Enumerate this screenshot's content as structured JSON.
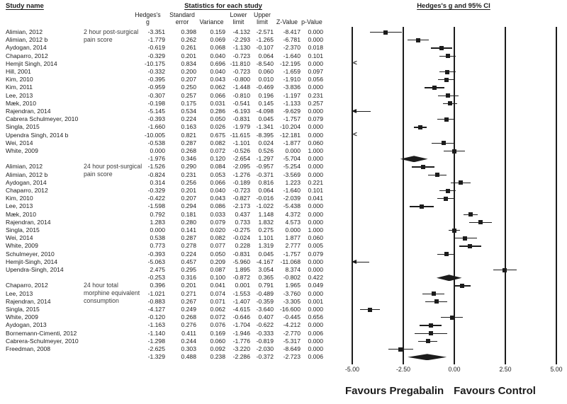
{
  "title": {
    "study_name_header": "Study name",
    "stats_header": "Statistics for each study",
    "ci_header": "Hedges's g and 95% CI"
  },
  "columns": {
    "line1": [
      "Hedges's",
      "Standard",
      "",
      "Lower",
      "Upper",
      "",
      ""
    ],
    "line2": [
      "g",
      "error",
      "Variance",
      "limit",
      "limit",
      "Z-Value",
      "p-Value"
    ]
  },
  "axis": {
    "min": -5,
    "max": 5,
    "ticks": [
      "-5.00",
      "-2.50",
      "0.00",
      "2.50",
      "5.00"
    ],
    "favours_left": "Favours Pregabalin",
    "favours_right": "Favours Control"
  },
  "chart_data": {
    "type": "forest",
    "effect_measure": "Hedges's g",
    "stat_columns": [
      "Hedges's g",
      "Standard error",
      "Variance",
      "Lower limit",
      "Upper limit",
      "Z-Value",
      "p-Value"
    ],
    "xlim": [
      -5,
      5
    ],
    "groups": [
      {
        "label": "2 hour post-surgical pain score",
        "label_lines": [
          "2 hour post-surgical",
          "pain score"
        ],
        "studies": [
          {
            "name": "Alimian, 2012",
            "stats": [
              "-3.351",
              "0.398",
              "0.159",
              "-4.132",
              "-2.571",
              "-8.417",
              "0.000"
            ]
          },
          {
            "name": "Alimian, 2012 b",
            "stats": [
              "-1.779",
              "0.262",
              "0.069",
              "-2.293",
              "-1.265",
              "-6.781",
              "0.000"
            ]
          },
          {
            "name": "Aydogan, 2014",
            "stats": [
              "-0.619",
              "0.261",
              "0.068",
              "-1.130",
              "-0.107",
              "-2.370",
              "0.018"
            ]
          },
          {
            "name": "Chaparro, 2012",
            "stats": [
              "-0.329",
              "0.201",
              "0.040",
              "-0.723",
              "0.064",
              "-1.640",
              "0.101"
            ]
          },
          {
            "name": "Hemjit Singh, 2014",
            "stats": [
              "-10.175",
              "0.834",
              "0.696",
              "-11.810",
              "-8.540",
              "-12.195",
              "0.000"
            ]
          },
          {
            "name": "Hill, 2001",
            "stats": [
              "-0.332",
              "0.200",
              "0.040",
              "-0.723",
              "0.060",
              "-1.659",
              "0.097"
            ]
          },
          {
            "name": "Kim, 2010",
            "stats": [
              "-0.395",
              "0.207",
              "0.043",
              "-0.800",
              "0.010",
              "-1.910",
              "0.056"
            ]
          },
          {
            "name": "Kim, 2011",
            "stats": [
              "-0.959",
              "0.250",
              "0.062",
              "-1.448",
              "-0.469",
              "-3.836",
              "0.000"
            ]
          },
          {
            "name": "Lee, 2013",
            "stats": [
              "-0.307",
              "0.257",
              "0.066",
              "-0.810",
              "0.196",
              "-1.197",
              "0.231"
            ]
          },
          {
            "name": "Mæk, 2010",
            "stats": [
              "-0.198",
              "0.175",
              "0.031",
              "-0.541",
              "0.145",
              "-1.133",
              "0.257"
            ]
          },
          {
            "name": "Rajendran, 2014",
            "stats": [
              "-5.145",
              "0.534",
              "0.286",
              "-6.193",
              "-4.098",
              "-9.629",
              "0.000"
            ]
          },
          {
            "name": "Cabrera Schulmeyer, 2010",
            "stats": [
              "-0.393",
              "0.224",
              "0.050",
              "-0.831",
              "0.045",
              "-1.757",
              "0.079"
            ]
          },
          {
            "name": "Singla, 2015",
            "stats": [
              "-1.660",
              "0.163",
              "0.026",
              "-1.979",
              "-1.341",
              "-10.204",
              "0.000"
            ]
          },
          {
            "name": "Upendra Singh, 2014 b",
            "stats": [
              "-10.005",
              "0.821",
              "0.675",
              "-11.615",
              "-8.395",
              "-12.181",
              "0.000"
            ]
          },
          {
            "name": "Wei, 2014",
            "stats": [
              "-0.538",
              "0.287",
              "0.082",
              "-1.101",
              "0.024",
              "-1.877",
              "0.060"
            ]
          },
          {
            "name": "White, 2009",
            "stats": [
              "0.000",
              "0.268",
              "0.072",
              "-0.526",
              "0.526",
              "0.000",
              "1.000"
            ]
          }
        ],
        "summary": {
          "stats": [
            "-1.976",
            "0.346",
            "0.120",
            "-2.654",
            "-1.297",
            "-5.704",
            "0.000"
          ]
        }
      },
      {
        "label": "24 hour post-surgical pain score",
        "label_lines": [
          "24 hour post-surgical",
          "pain score"
        ],
        "studies": [
          {
            "name": "Alimian, 2012",
            "stats": [
              "-1.526",
              "0.290",
              "0.084",
              "-2.095",
              "-0.957",
              "-5.254",
              "0.000"
            ]
          },
          {
            "name": "Alimian, 2012 b",
            "stats": [
              "-0.824",
              "0.231",
              "0.053",
              "-1.276",
              "-0.371",
              "-3.569",
              "0.000"
            ]
          },
          {
            "name": "Aydogan, 2014",
            "stats": [
              "0.314",
              "0.256",
              "0.066",
              "-0.189",
              "0.816",
              "1.223",
              "0.221"
            ]
          },
          {
            "name": "Chaparro, 2012",
            "stats": [
              "-0.329",
              "0.201",
              "0.040",
              "-0.723",
              "0.064",
              "-1.640",
              "0.101"
            ]
          },
          {
            "name": "Kim, 2010",
            "stats": [
              "-0.422",
              "0.207",
              "0.043",
              "-0.827",
              "-0.016",
              "-2.039",
              "0.041"
            ]
          },
          {
            "name": "Lee, 2013",
            "stats": [
              "-1.598",
              "0.294",
              "0.086",
              "-2.173",
              "-1.022",
              "-5.438",
              "0.000"
            ]
          },
          {
            "name": "Mæk, 2010",
            "stats": [
              "0.792",
              "0.181",
              "0.033",
              "0.437",
              "1.148",
              "4.372",
              "0.000"
            ]
          },
          {
            "name": "Rajendran, 2014",
            "stats": [
              "1.283",
              "0.280",
              "0.079",
              "0.733",
              "1.832",
              "4.573",
              "0.000"
            ]
          },
          {
            "name": "Singla, 2015",
            "stats": [
              "0.000",
              "0.141",
              "0.020",
              "-0.275",
              "0.275",
              "0.000",
              "1.000"
            ]
          },
          {
            "name": "Wei, 2014",
            "stats": [
              "0.538",
              "0.287",
              "0.082",
              "-0.024",
              "1.101",
              "1.877",
              "0.060"
            ]
          },
          {
            "name": "White, 2009",
            "stats": [
              "0.773",
              "0.278",
              "0.077",
              "0.228",
              "1.319",
              "2.777",
              "0.005"
            ]
          },
          {
            "name": "Schulmeyer, 2010",
            "stats": [
              "-0.393",
              "0.224",
              "0.050",
              "-0.831",
              "0.045",
              "-1.757",
              "0.079"
            ]
          },
          {
            "name": "Hemjit-Singh, 2014",
            "stats": [
              "-5.063",
              "0.457",
              "0.209",
              "-5.960",
              "-4.167",
              "-11.068",
              "0.000"
            ]
          },
          {
            "name": "Upendra-Singh, 2014",
            "stats": [
              "2.475",
              "0.295",
              "0.087",
              "1.895",
              "3.054",
              "8.374",
              "0.000"
            ]
          }
        ],
        "summary": {
          "stats": [
            "-0.253",
            "0.316",
            "0.100",
            "-0.872",
            "0.365",
            "-0.802",
            "0.422"
          ]
        }
      },
      {
        "label": "24 hour total morphine equivalent consumption",
        "label_lines": [
          "24 hour total",
          "morphine equivalent",
          "consumption"
        ],
        "studies": [
          {
            "name": "Chaparro, 2012",
            "stats": [
              "0.396",
              "0.201",
              "0.041",
              "0.001",
              "0.791",
              "1.965",
              "0.049"
            ]
          },
          {
            "name": "Lee, 2013",
            "stats": [
              "-1.021",
              "0.271",
              "0.074",
              "-1.553",
              "-0.489",
              "-3.760",
              "0.000"
            ]
          },
          {
            "name": "Rajendran, 2014",
            "stats": [
              "-0.883",
              "0.267",
              "0.071",
              "-1.407",
              "-0.359",
              "-3.305",
              "0.001"
            ]
          },
          {
            "name": "Singla, 2015",
            "stats": [
              "-4.127",
              "0.249",
              "0.062",
              "-4.615",
              "-3.640",
              "-16.600",
              "0.000"
            ]
          },
          {
            "name": "White, 2009",
            "stats": [
              "-0.120",
              "0.268",
              "0.072",
              "-0.646",
              "0.407",
              "-0.445",
              "0.656"
            ]
          },
          {
            "name": "Aydogan, 2013",
            "stats": [
              "-1.163",
              "0.276",
              "0.076",
              "-1.704",
              "-0.622",
              "-4.212",
              "0.000"
            ]
          },
          {
            "name": "Bornemann-Cimenti, 2012",
            "stats": [
              "-1.140",
              "0.411",
              "0.169",
              "-1.946",
              "-0.333",
              "-2.770",
              "0.006"
            ]
          },
          {
            "name": "Cabrera-Schulmeyer, 2010",
            "stats": [
              "-1.298",
              "0.244",
              "0.060",
              "-1.776",
              "-0.819",
              "-5.317",
              "0.000"
            ]
          },
          {
            "name": "Freedman, 2008",
            "stats": [
              "-2.625",
              "0.303",
              "0.092",
              "-3.220",
              "-2.030",
              "-8.649",
              "0.000"
            ]
          }
        ],
        "summary": {
          "stats": [
            "-1.329",
            "0.488",
            "0.238",
            "-2.286",
            "-0.372",
            "-2.723",
            "0.006"
          ]
        }
      }
    ]
  }
}
